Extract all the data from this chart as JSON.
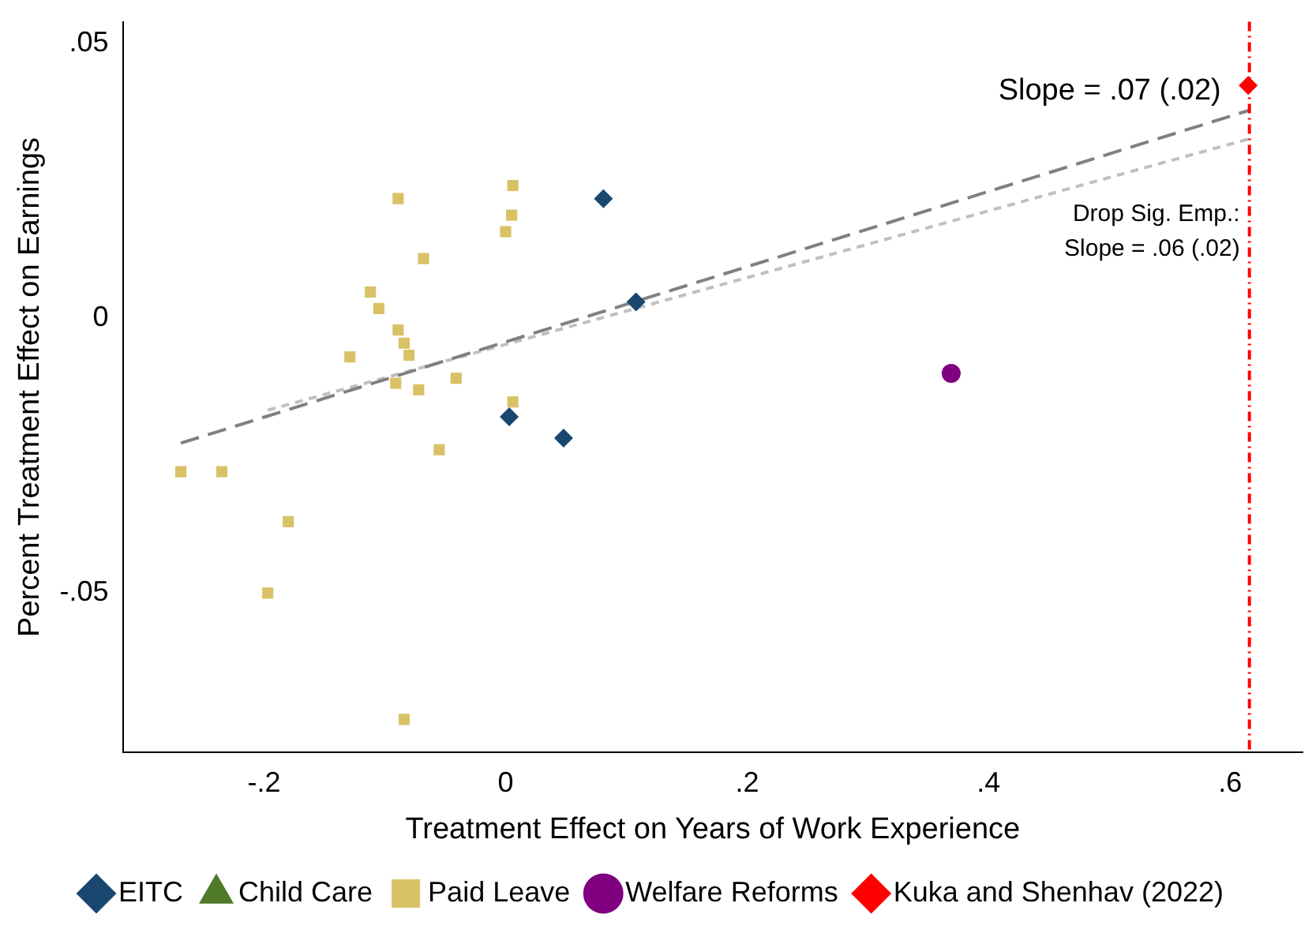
{
  "chart_data": {
    "type": "scatter",
    "xlabel": "Treatment Effect on Years of Work Experience",
    "ylabel": "Percent Treatment Effect on Earnings",
    "xlim": [
      -0.317,
      0.66
    ],
    "ylim": [
      -0.079,
      0.054
    ],
    "xticks": [
      {
        "value": -0.2,
        "label": "-.2"
      },
      0,
      {
        "value": 0.2,
        "label": ".2"
      },
      {
        "value": 0.4,
        "label": ".4"
      },
      {
        "value": 0.6,
        "label": ".6"
      }
    ],
    "yticks": [
      {
        "value": -0.05,
        "label": "-.05"
      },
      0,
      {
        "value": 0.05,
        "label": ".05"
      }
    ],
    "grid": false,
    "legend": "bottom",
    "series": [
      {
        "name": "EITC",
        "color": "#1a476f",
        "marker": "diamond",
        "x": [
          0.081,
          0.108,
          0.003,
          0.048
        ],
        "values": [
          0.0218,
          0.003,
          -0.0179,
          -0.0218
        ]
      },
      {
        "name": "Child Care",
        "color": "#4e7a2a",
        "marker": "triangle"
      },
      {
        "name": "Paid Leave",
        "color": "#d9c266",
        "marker": "square",
        "x": [
          -0.269,
          -0.235,
          -0.18,
          -0.197,
          -0.084,
          -0.089,
          0.006,
          0.005,
          0,
          -0.068,
          -0.112,
          -0.105,
          -0.129,
          -0.089,
          -0.084,
          -0.08,
          -0.091,
          -0.072,
          -0.041,
          0.006,
          -0.055
        ],
        "values": [
          -0.0279,
          -0.0279,
          -0.037,
          -0.05,
          -0.073,
          0.0218,
          0.0242,
          0.0188,
          0.0158,
          0.0109,
          0.0048,
          0.0018,
          -0.007,
          -0.0021,
          -0.0045,
          -0.0067,
          -0.0118,
          -0.013,
          -0.0109,
          -0.0152,
          -0.0239
        ]
      },
      {
        "name": "Welfare Reforms",
        "color": "#800080",
        "marker": "circle",
        "x": [
          0.369
        ],
        "values": [
          -0.01
        ]
      },
      {
        "name": "Kuka and Shenhav (2022)",
        "color": "#ff0000",
        "marker": "diamond",
        "x": [
          0.615
        ],
        "values": [
          0.0424
        ]
      },
      {
        "type": "line",
        "color": "#808080",
        "line_style": "dashed",
        "marker": "none",
        "x": [
          -0.269,
          0.616
        ],
        "values": [
          -0.0227,
          0.0379
        ]
      },
      {
        "type": "line",
        "color": "#c0c0c0",
        "line_style": "dotted",
        "marker": "none",
        "x": [
          -0.197,
          0.616
        ],
        "values": [
          -0.0167,
          0.0327
        ]
      }
    ],
    "ref_lines": [
      {
        "axis": "x",
        "value": 0.616,
        "color": "#ff0000",
        "line_style": "dashdot"
      }
    ],
    "annotations": [
      "Slope = .07 (.02)",
      "Drop Sig. Emp.:",
      "Slope = .06 (.02)"
    ]
  }
}
